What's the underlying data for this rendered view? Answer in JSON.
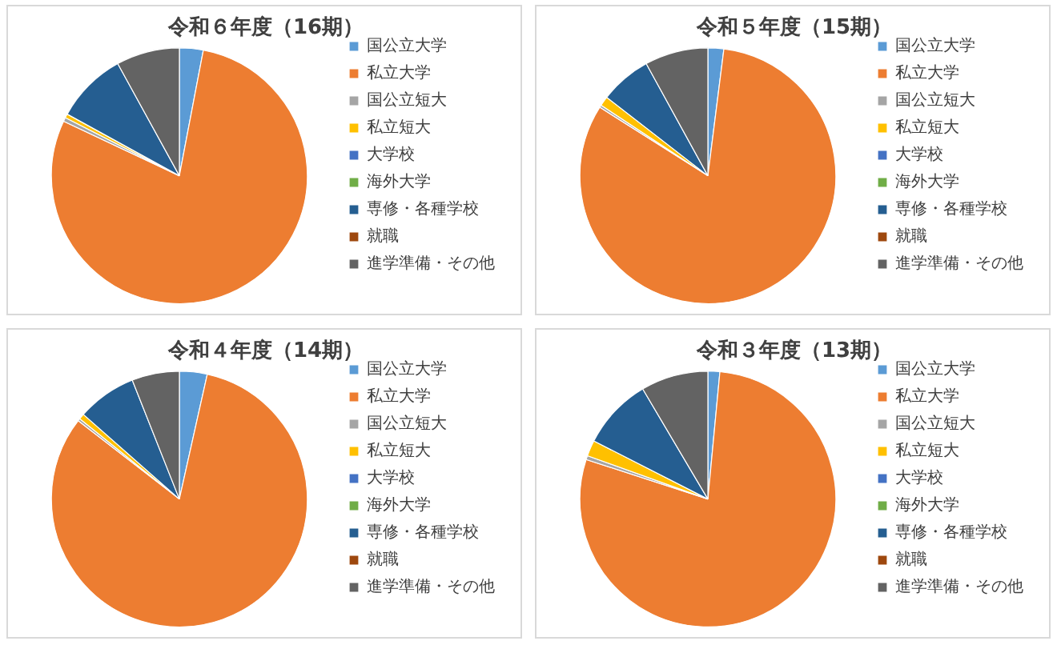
{
  "chart_data": [
    {
      "type": "pie",
      "title": "令和６年度（16期）",
      "categories": [
        "国公立大学",
        "私立大学",
        "国公立短大",
        "私立短大",
        "大学校",
        "海外大学",
        "専修・各種学校",
        "就職",
        "進学準備・その他"
      ],
      "values": [
        3,
        79,
        0.5,
        0.5,
        0,
        0,
        9,
        0,
        8
      ],
      "colors": [
        "#5b9bd5",
        "#ed7d31",
        "#a5a5a5",
        "#ffc000",
        "#4472c4",
        "#70ad47",
        "#255e91",
        "#9e480e",
        "#636363"
      ],
      "legend": "right"
    },
    {
      "type": "pie",
      "title": "令和５年度（15期）",
      "categories": [
        "国公立大学",
        "私立大学",
        "国公立短大",
        "私立短大",
        "大学校",
        "海外大学",
        "専修・各種学校",
        "就職",
        "進学準備・その他"
      ],
      "values": [
        2,
        82,
        0.3,
        1.2,
        0,
        0,
        6.5,
        0,
        8
      ],
      "colors": [
        "#5b9bd5",
        "#ed7d31",
        "#a5a5a5",
        "#ffc000",
        "#4472c4",
        "#70ad47",
        "#255e91",
        "#9e480e",
        "#636363"
      ],
      "legend": "right"
    },
    {
      "type": "pie",
      "title": "令和４年度（14期）",
      "categories": [
        "国公立大学",
        "私立大学",
        "国公立短大",
        "私立短大",
        "大学校",
        "海外大学",
        "専修・各種学校",
        "就職",
        "進学準備・その他"
      ],
      "values": [
        3.5,
        82,
        0.3,
        0.7,
        0,
        0,
        7.5,
        0,
        6
      ],
      "colors": [
        "#5b9bd5",
        "#ed7d31",
        "#a5a5a5",
        "#ffc000",
        "#4472c4",
        "#70ad47",
        "#255e91",
        "#9e480e",
        "#636363"
      ],
      "legend": "right"
    },
    {
      "type": "pie",
      "title": "令和３年度（13期）",
      "categories": [
        "国公立大学",
        "私立大学",
        "国公立短大",
        "私立短大",
        "大学校",
        "海外大学",
        "専修・各種学校",
        "就職",
        "進学準備・その他"
      ],
      "values": [
        1.5,
        78.5,
        0.5,
        2,
        0,
        0,
        9,
        0,
        8.5
      ],
      "colors": [
        "#5b9bd5",
        "#ed7d31",
        "#a5a5a5",
        "#ffc000",
        "#4472c4",
        "#70ad47",
        "#255e91",
        "#9e480e",
        "#636363"
      ],
      "legend": "right"
    }
  ]
}
